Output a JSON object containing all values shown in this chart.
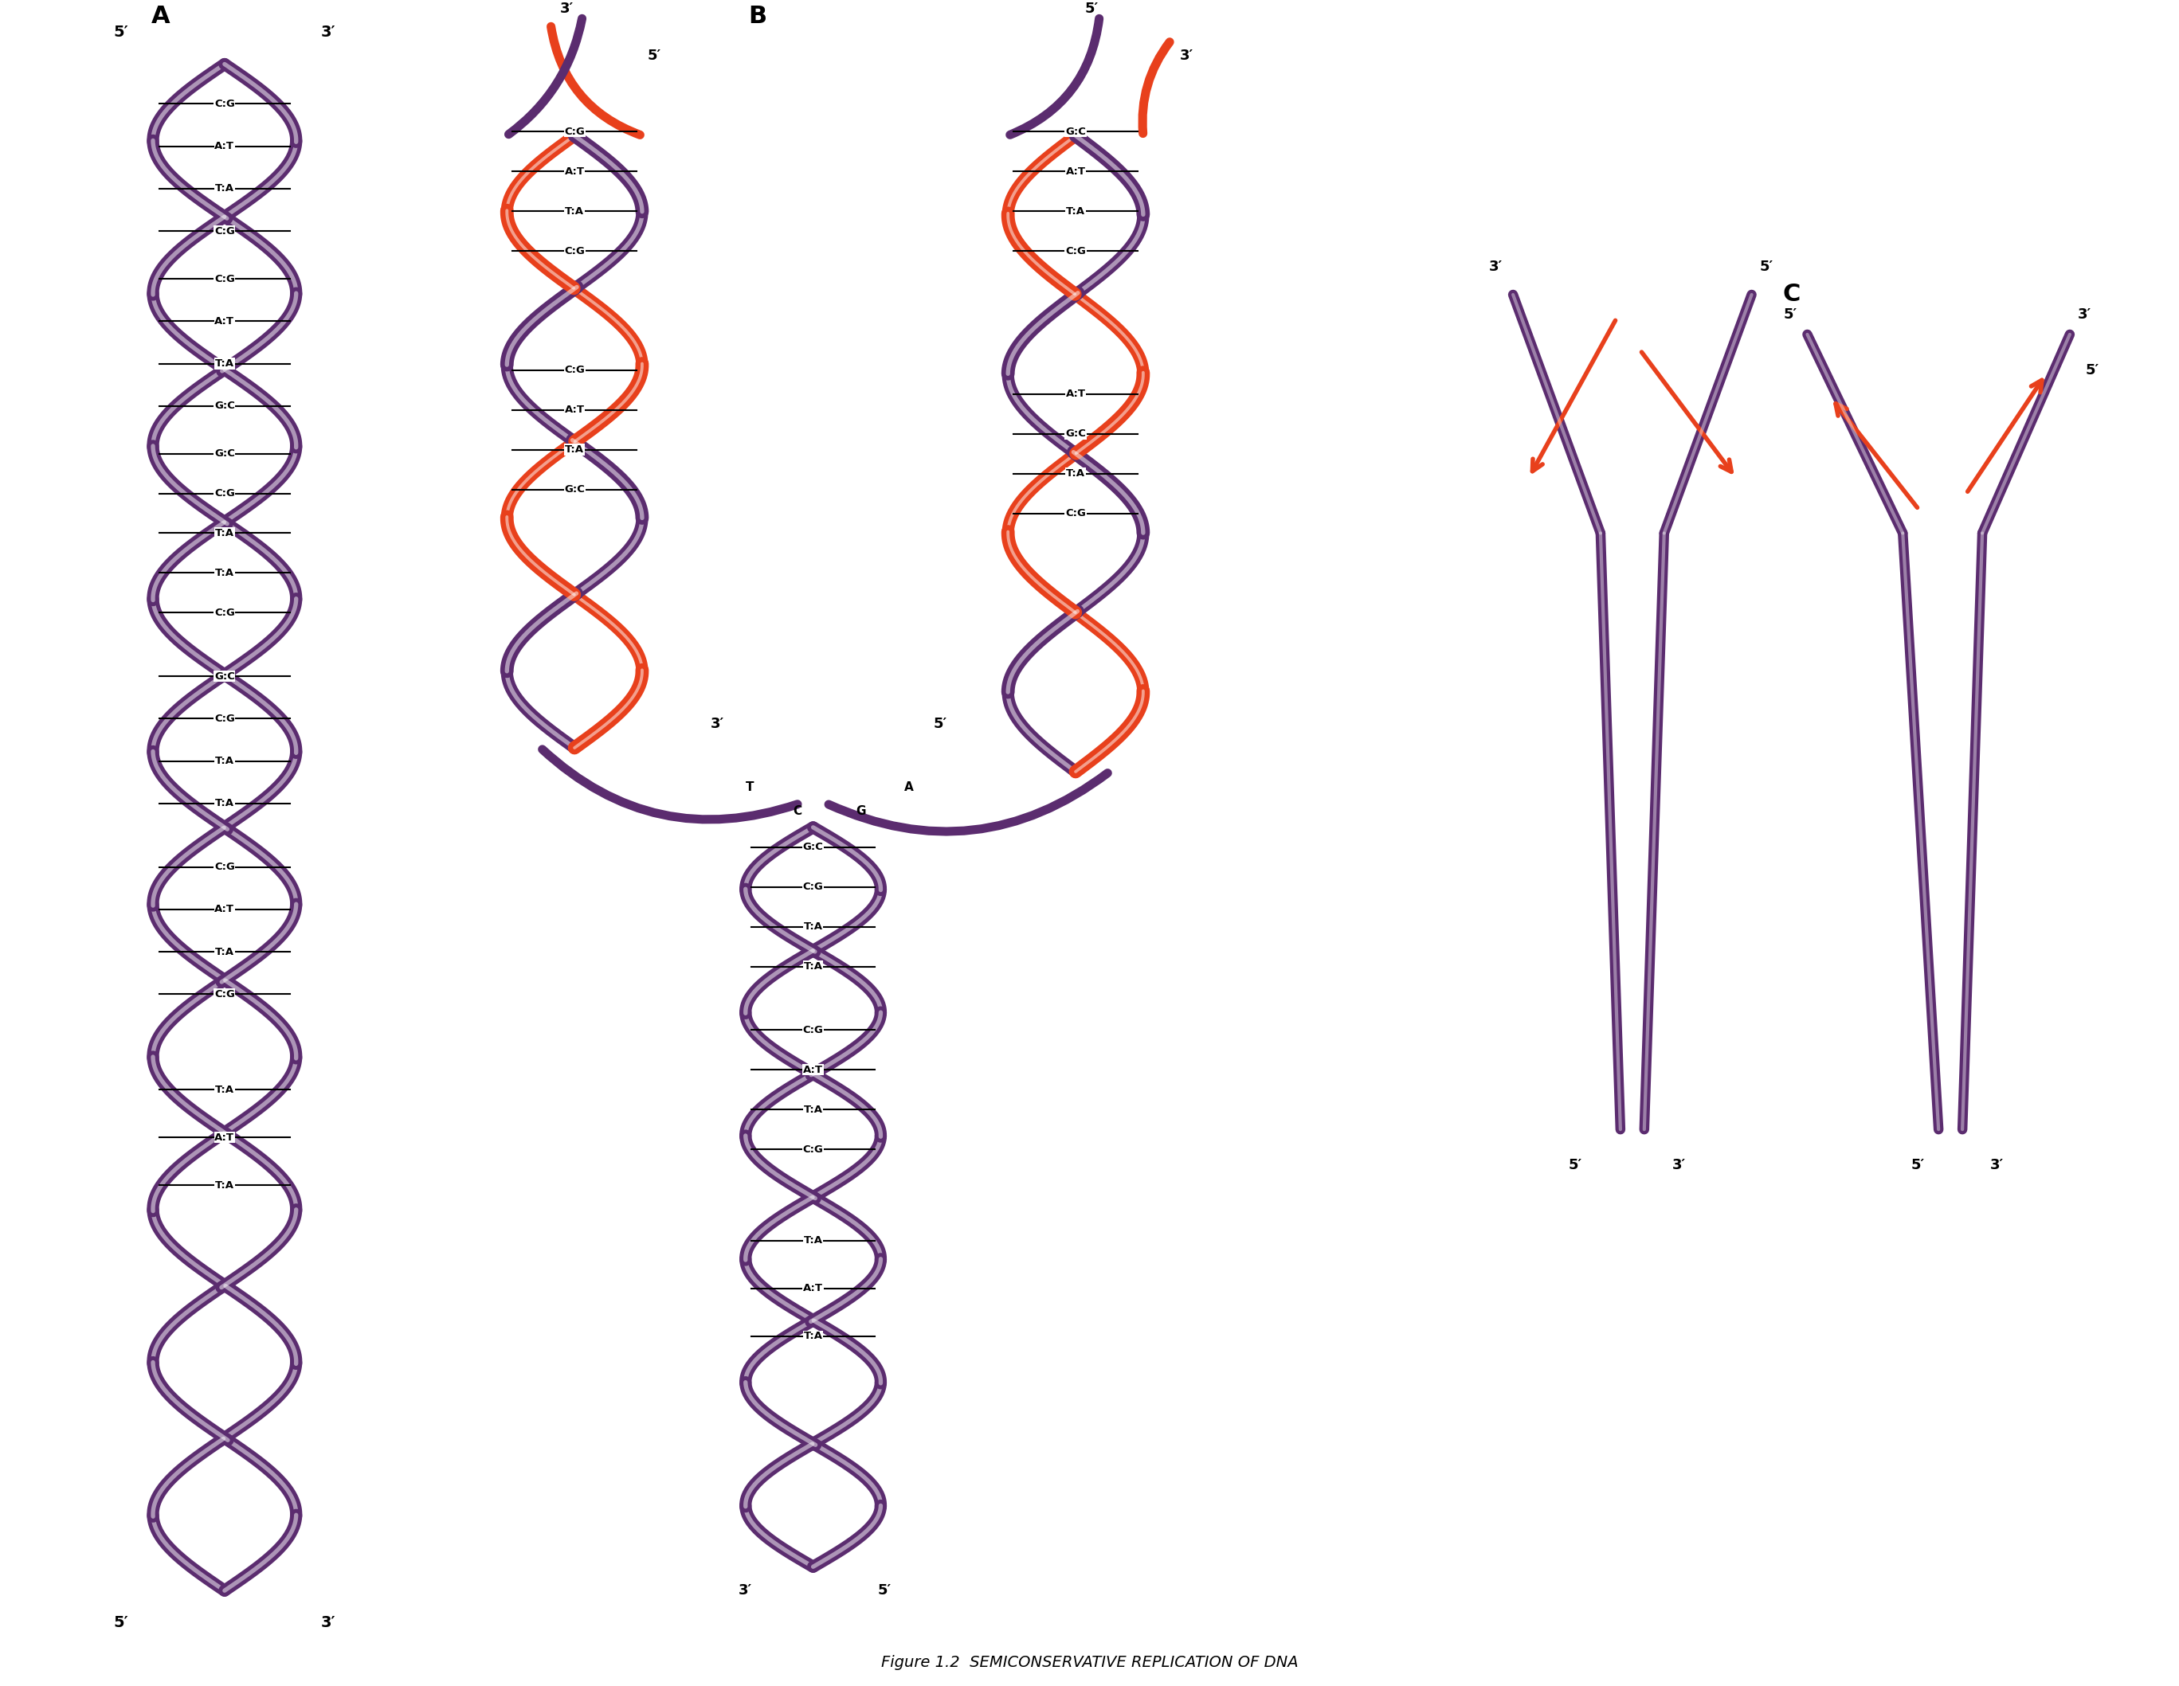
{
  "title": "Figure 1.2  SEMICONSERVATIVE REPLICATION OF DNA",
  "bg_color": "#ffffff",
  "purple_dark": "#5B2C6F",
  "purple_mid": "#8E44AD",
  "purple_light": "#D7BDE2",
  "red_strand": "#E8401C",
  "label_A": "A",
  "label_B": "B",
  "label_C": "C",
  "helix_A_pairs": [
    "C:G",
    "A:T",
    "T:A",
    "C:G",
    "C:G",
    "A:T",
    "T:A",
    "G:C",
    "G:C",
    "C:G",
    "T:A",
    "T:A",
    "C:G",
    "G:C",
    "C:G",
    "T:A",
    "T:A",
    "C:G",
    "A:T",
    "T:A",
    "C:G"
  ],
  "helix_A_5prime_left": "5′",
  "helix_A_3prime_right": "3′",
  "helix_A_5prime_bottom": "5′",
  "helix_A_3prime_top": "3′"
}
